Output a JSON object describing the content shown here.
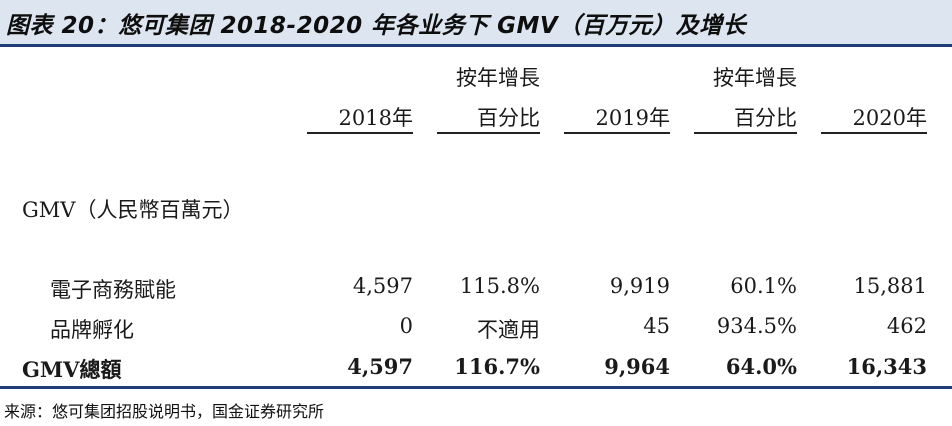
{
  "title": "图表 20：悠可集团 2018-2020 年各业务下 GMV（百万元）及增长",
  "columns": {
    "c2018": "2018年",
    "g1_line1": "按年增長",
    "g1_line2": "百分比",
    "c2019": "2019年",
    "g2_line1": "按年增長",
    "g2_line2": "百分比",
    "c2020": "2020年"
  },
  "section_label": "GMV（人民幣百萬元）",
  "rows": [
    {
      "label": "電子商務賦能",
      "v2018": "4,597",
      "g1": "115.8%",
      "v2019": "9,919",
      "g2": "60.1%",
      "v2020": "15,881"
    },
    {
      "label": "品牌孵化",
      "v2018": "0",
      "g1": "不適用",
      "v2019": "45",
      "g2": "934.5%",
      "v2020": "462"
    },
    {
      "label": "GMV總額",
      "v2018": "4,597",
      "g1": "116.7%",
      "v2019": "9,964",
      "g2": "64.0%",
      "v2020": "16,343"
    }
  ],
  "source": "来源：悠可集团招股说明书，国金证券研究所",
  "colors": {
    "title_bg": "#dde5f0",
    "rule": "#1f3e77"
  }
}
